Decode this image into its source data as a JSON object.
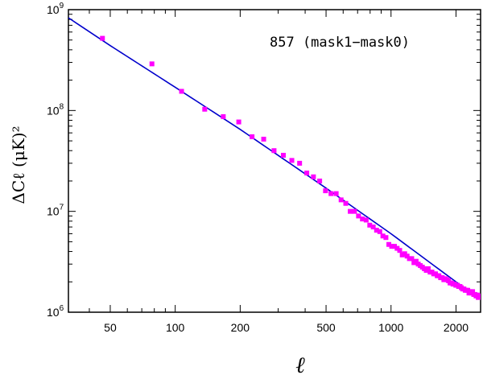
{
  "chart_data": {
    "type": "scatter",
    "title": "",
    "annotation": "857 (mask1−mask0)",
    "xlabel": "ℓ",
    "ylabel": "ΔCℓ (μK)²",
    "xscale": "log",
    "yscale": "log",
    "xlim": [
      32,
      2600
    ],
    "ylim": [
      1000000,
      1000000000
    ],
    "grid": false,
    "xticks": [
      {
        "value": 50,
        "label": "50"
      },
      {
        "value": 100,
        "label": "100"
      },
      {
        "value": 200,
        "label": "200"
      },
      {
        "value": 500,
        "label": "500"
      },
      {
        "value": 1000,
        "label": "1000"
      },
      {
        "value": 2000,
        "label": "2000"
      }
    ],
    "yticks": [
      {
        "value": 1000000,
        "base": "10",
        "exp": "6"
      },
      {
        "value": 10000000,
        "base": "10",
        "exp": "7"
      },
      {
        "value": 100000000,
        "base": "10",
        "exp": "8"
      },
      {
        "value": 1000000000,
        "base": "10",
        "exp": "9"
      }
    ],
    "series": [
      {
        "kind": "points",
        "color": "#ff00ff",
        "x": [
          46,
          78,
          107,
          137,
          167,
          197,
          227,
          257,
          287,
          317,
          347,
          377,
          407,
          437,
          467,
          497,
          527,
          557,
          587,
          617,
          647,
          677,
          707,
          737,
          767,
          797,
          827,
          857,
          887,
          917,
          947,
          977,
          1007,
          1037,
          1067,
          1097,
          1127,
          1157,
          1187,
          1217,
          1247,
          1277,
          1307,
          1337,
          1367,
          1397,
          1427,
          1457,
          1487,
          1517,
          1547,
          1577,
          1607,
          1637,
          1667,
          1697,
          1727,
          1757,
          1787,
          1817,
          1847,
          1877,
          1907,
          1937,
          1967,
          1997,
          2027,
          2057,
          2087,
          2117,
          2147,
          2177,
          2207,
          2237,
          2267,
          2297,
          2327,
          2357,
          2387,
          2417,
          2447,
          2477,
          2507,
          2537,
          2567
        ],
        "y": [
          520000000,
          290000000,
          155000000,
          103000000,
          87000000,
          77000000,
          55000000,
          52000000,
          40000000,
          36000000,
          32000000,
          30000000,
          24000000,
          22000000,
          20000000,
          16000000,
          15000000,
          15000000,
          13000000,
          12000000,
          10000000,
          10000000,
          9000000,
          8400000,
          8200000,
          7300000,
          7000000,
          6500000,
          6300000,
          5700000,
          5500000,
          4700000,
          4500000,
          4500000,
          4300000,
          4100000,
          3700000,
          3800000,
          3600000,
          3400000,
          3400000,
          3100000,
          3200000,
          3000000,
          2900000,
          2800000,
          2700000,
          2600000,
          2700000,
          2500000,
          2500000,
          2400000,
          2400000,
          2300000,
          2300000,
          2200000,
          2200000,
          2100000,
          2150000,
          2100000,
          2050000,
          1950000,
          1950000,
          1900000,
          1900000,
          1850000,
          1850000,
          1800000,
          1800000,
          1750000,
          1700000,
          1700000,
          1650000,
          1650000,
          1650000,
          1550000,
          1600000,
          1550000,
          1600000,
          1500000,
          1500000,
          1450000,
          1480000,
          1400000,
          1450000
        ]
      },
      {
        "kind": "line",
        "color": "#0000cc",
        "x": [
          32,
          50,
          100,
          200,
          500,
          1000,
          2000,
          2600
        ],
        "y": [
          830000000,
          440000000,
          170000000,
          65000000,
          17000000,
          6000000,
          2000000,
          1350000
        ]
      }
    ]
  }
}
